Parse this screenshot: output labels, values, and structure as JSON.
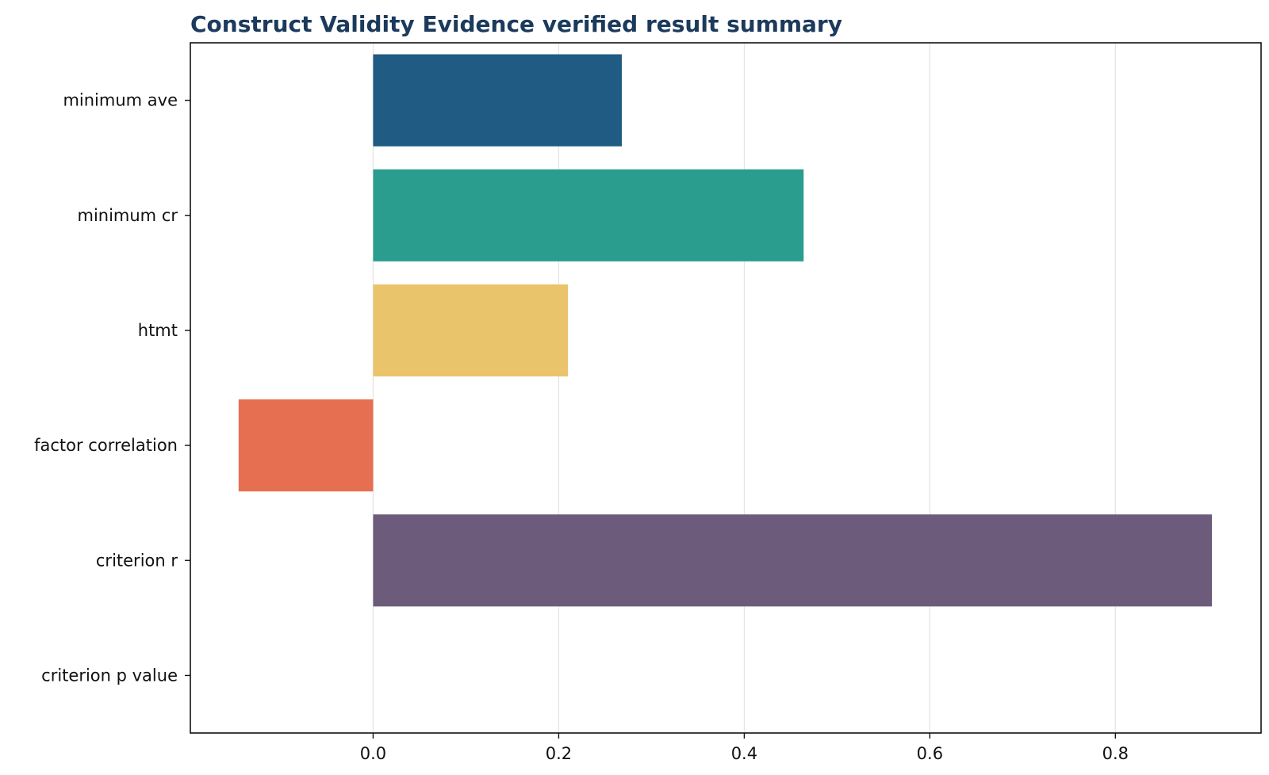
{
  "chart_data": {
    "type": "bar",
    "orientation": "horizontal",
    "title": "Construct Validity Evidence verified result summary",
    "xlabel": "",
    "ylabel": "",
    "categories": [
      "minimum ave",
      "minimum cr",
      "htmt",
      "factor correlation",
      "criterion r",
      "criterion p value"
    ],
    "values": [
      0.268,
      0.464,
      0.21,
      -0.145,
      0.904,
      0.0
    ],
    "colors": [
      "#1f5b82",
      "#2a9d8f",
      "#e9c46a",
      "#e76f51",
      "#6d5b7b",
      "#264653"
    ],
    "xlim": [
      -0.197,
      0.957
    ],
    "xticks": [
      0.0,
      0.2,
      0.4,
      0.6,
      0.8
    ],
    "xtick_labels": [
      "0.0",
      "0.2",
      "0.4",
      "0.6",
      "0.8"
    ],
    "grid": "vertical"
  }
}
